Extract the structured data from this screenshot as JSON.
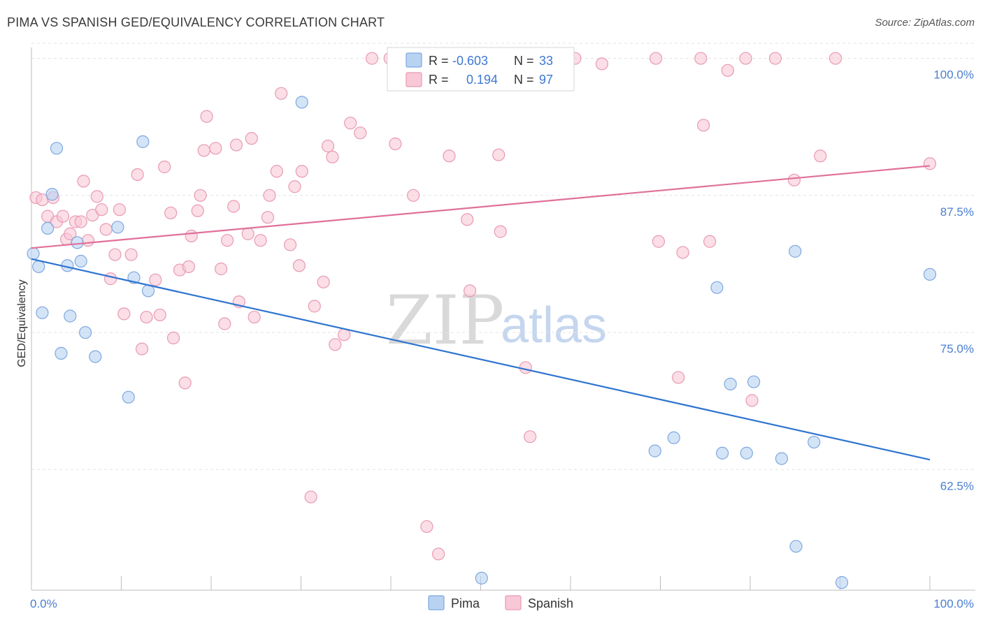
{
  "title": "PIMA VS SPANISH GED/EQUIVALENCY CORRELATION CHART",
  "source": "Source: ZipAtlas.com",
  "watermark": {
    "zip": "ZIP",
    "atlas": "atlas"
  },
  "colors": {
    "pima_fill": "#b8d2f2",
    "pima_stroke": "#7ea8df",
    "pima_line": "#2f74d0",
    "spanish_fill": "#f8c8d6",
    "spanish_stroke": "#e89ab4",
    "spanish_line": "#e0709a",
    "tick_text": "#4a7fd0",
    "grid": "#e3e3e3"
  },
  "legend_top": {
    "rows": [
      {
        "r_label": "R =",
        "r_value": "-0.603",
        "n_label": "N =",
        "n_value": "33"
      },
      {
        "r_label": "R =",
        "r_value": " 0.194",
        "n_label": "N =",
        "n_value": "97"
      }
    ]
  },
  "legend_bottom": [
    "Pima",
    "Spanish"
  ],
  "chart_data": {
    "type": "scatter",
    "title": "PIMA VS SPANISH GED/EQUIVALENCY CORRELATION CHART",
    "xlabel": "",
    "ylabel": "GED/Equivalency",
    "xlim": [
      0,
      100
    ],
    "ylim": [
      51.5,
      101.5
    ],
    "x_tick_labels": [
      "0.0%",
      "100.0%"
    ],
    "y_ticks": [
      62.5,
      75.0,
      87.5,
      100.0
    ],
    "y_tick_labels": [
      "62.5%",
      "75.0%",
      "87.5%",
      "100.0%"
    ],
    "grid": true,
    "legend_position": "top-center",
    "series": [
      {
        "name": "Pima",
        "R": -0.603,
        "N": 33,
        "trend": {
          "x": [
            0,
            100
          ],
          "y": [
            81.7,
            63.4
          ]
        },
        "points": [
          [
            0.2,
            82.2
          ],
          [
            0.8,
            81.0
          ],
          [
            1.2,
            76.8
          ],
          [
            1.8,
            84.5
          ],
          [
            2.3,
            87.6
          ],
          [
            2.8,
            91.8
          ],
          [
            3.3,
            73.1
          ],
          [
            4.0,
            81.1
          ],
          [
            4.3,
            76.5
          ],
          [
            5.1,
            83.2
          ],
          [
            5.5,
            81.5
          ],
          [
            6.0,
            75.0
          ],
          [
            7.1,
            72.8
          ],
          [
            9.6,
            84.6
          ],
          [
            10.8,
            69.1
          ],
          [
            11.4,
            80.0
          ],
          [
            12.4,
            92.4
          ],
          [
            13.0,
            78.8
          ],
          [
            30.1,
            96.0
          ],
          [
            50.1,
            52.6
          ],
          [
            69.4,
            64.2
          ],
          [
            71.5,
            65.4
          ],
          [
            76.3,
            79.1
          ],
          [
            76.9,
            64.0
          ],
          [
            77.8,
            70.3
          ],
          [
            79.6,
            64.0
          ],
          [
            80.4,
            70.5
          ],
          [
            83.5,
            63.5
          ],
          [
            85.0,
            82.4
          ],
          [
            85.1,
            55.5
          ],
          [
            87.1,
            65.0
          ],
          [
            90.2,
            52.2
          ],
          [
            100.0,
            80.3
          ]
        ]
      },
      {
        "name": "Spanish",
        "R": 0.194,
        "N": 97,
        "trend": {
          "x": [
            0,
            100
          ],
          "y": [
            82.7,
            90.2
          ]
        },
        "points": [
          [
            0.5,
            87.3
          ],
          [
            1.2,
            87.1
          ],
          [
            1.8,
            85.6
          ],
          [
            2.4,
            87.3
          ],
          [
            2.8,
            85.1
          ],
          [
            3.5,
            85.6
          ],
          [
            3.9,
            83.5
          ],
          [
            4.3,
            84.0
          ],
          [
            4.9,
            85.1
          ],
          [
            5.5,
            85.1
          ],
          [
            5.8,
            88.8
          ],
          [
            6.3,
            83.4
          ],
          [
            6.8,
            85.7
          ],
          [
            7.3,
            87.4
          ],
          [
            7.8,
            86.2
          ],
          [
            8.3,
            84.4
          ],
          [
            8.8,
            79.9
          ],
          [
            9.3,
            82.1
          ],
          [
            9.8,
            86.2
          ],
          [
            10.3,
            76.7
          ],
          [
            11.1,
            82.1
          ],
          [
            11.8,
            89.4
          ],
          [
            12.3,
            73.5
          ],
          [
            12.8,
            76.4
          ],
          [
            13.8,
            79.8
          ],
          [
            14.3,
            76.6
          ],
          [
            14.8,
            90.1
          ],
          [
            15.5,
            85.9
          ],
          [
            15.8,
            74.5
          ],
          [
            16.5,
            80.7
          ],
          [
            17.1,
            70.4
          ],
          [
            17.5,
            81.0
          ],
          [
            17.8,
            83.8
          ],
          [
            18.5,
            86.1
          ],
          [
            18.8,
            87.5
          ],
          [
            19.2,
            91.6
          ],
          [
            19.5,
            94.7
          ],
          [
            20.5,
            91.8
          ],
          [
            21.1,
            80.8
          ],
          [
            21.5,
            75.8
          ],
          [
            21.8,
            83.4
          ],
          [
            22.5,
            86.5
          ],
          [
            22.8,
            92.1
          ],
          [
            23.1,
            77.8
          ],
          [
            24.1,
            84.0
          ],
          [
            24.5,
            92.7
          ],
          [
            24.8,
            76.4
          ],
          [
            25.5,
            83.4
          ],
          [
            26.3,
            85.5
          ],
          [
            26.5,
            87.5
          ],
          [
            27.3,
            89.7
          ],
          [
            27.8,
            96.8
          ],
          [
            28.8,
            83.0
          ],
          [
            29.3,
            88.3
          ],
          [
            29.8,
            81.1
          ],
          [
            30.1,
            89.7
          ],
          [
            31.1,
            60.0
          ],
          [
            31.5,
            77.4
          ],
          [
            32.5,
            79.6
          ],
          [
            33.0,
            92.0
          ],
          [
            33.5,
            91.0
          ],
          [
            33.8,
            73.9
          ],
          [
            34.8,
            74.8
          ],
          [
            35.5,
            94.1
          ],
          [
            36.6,
            93.2
          ],
          [
            37.9,
            100.0
          ],
          [
            39.9,
            100.0
          ],
          [
            40.5,
            92.2
          ],
          [
            42.5,
            87.5
          ],
          [
            44.0,
            57.3
          ],
          [
            45.3,
            54.8
          ],
          [
            46.5,
            91.1
          ],
          [
            48.5,
            85.3
          ],
          [
            48.8,
            78.8
          ],
          [
            51.5,
            100.0
          ],
          [
            52.0,
            91.2
          ],
          [
            52.2,
            84.2
          ],
          [
            55.0,
            71.8
          ],
          [
            55.5,
            65.5
          ],
          [
            56.5,
            100.0
          ],
          [
            60.5,
            100.0
          ],
          [
            63.5,
            99.5
          ],
          [
            69.5,
            100.0
          ],
          [
            69.8,
            83.3
          ],
          [
            72.0,
            70.9
          ],
          [
            72.5,
            82.3
          ],
          [
            74.5,
            100.0
          ],
          [
            74.8,
            93.9
          ],
          [
            75.5,
            83.3
          ],
          [
            77.5,
            98.9
          ],
          [
            79.5,
            100.0
          ],
          [
            80.2,
            68.8
          ],
          [
            82.8,
            100.0
          ],
          [
            84.9,
            88.9
          ],
          [
            87.8,
            91.1
          ],
          [
            89.5,
            100.0
          ],
          [
            100.0,
            90.4
          ]
        ]
      }
    ]
  }
}
